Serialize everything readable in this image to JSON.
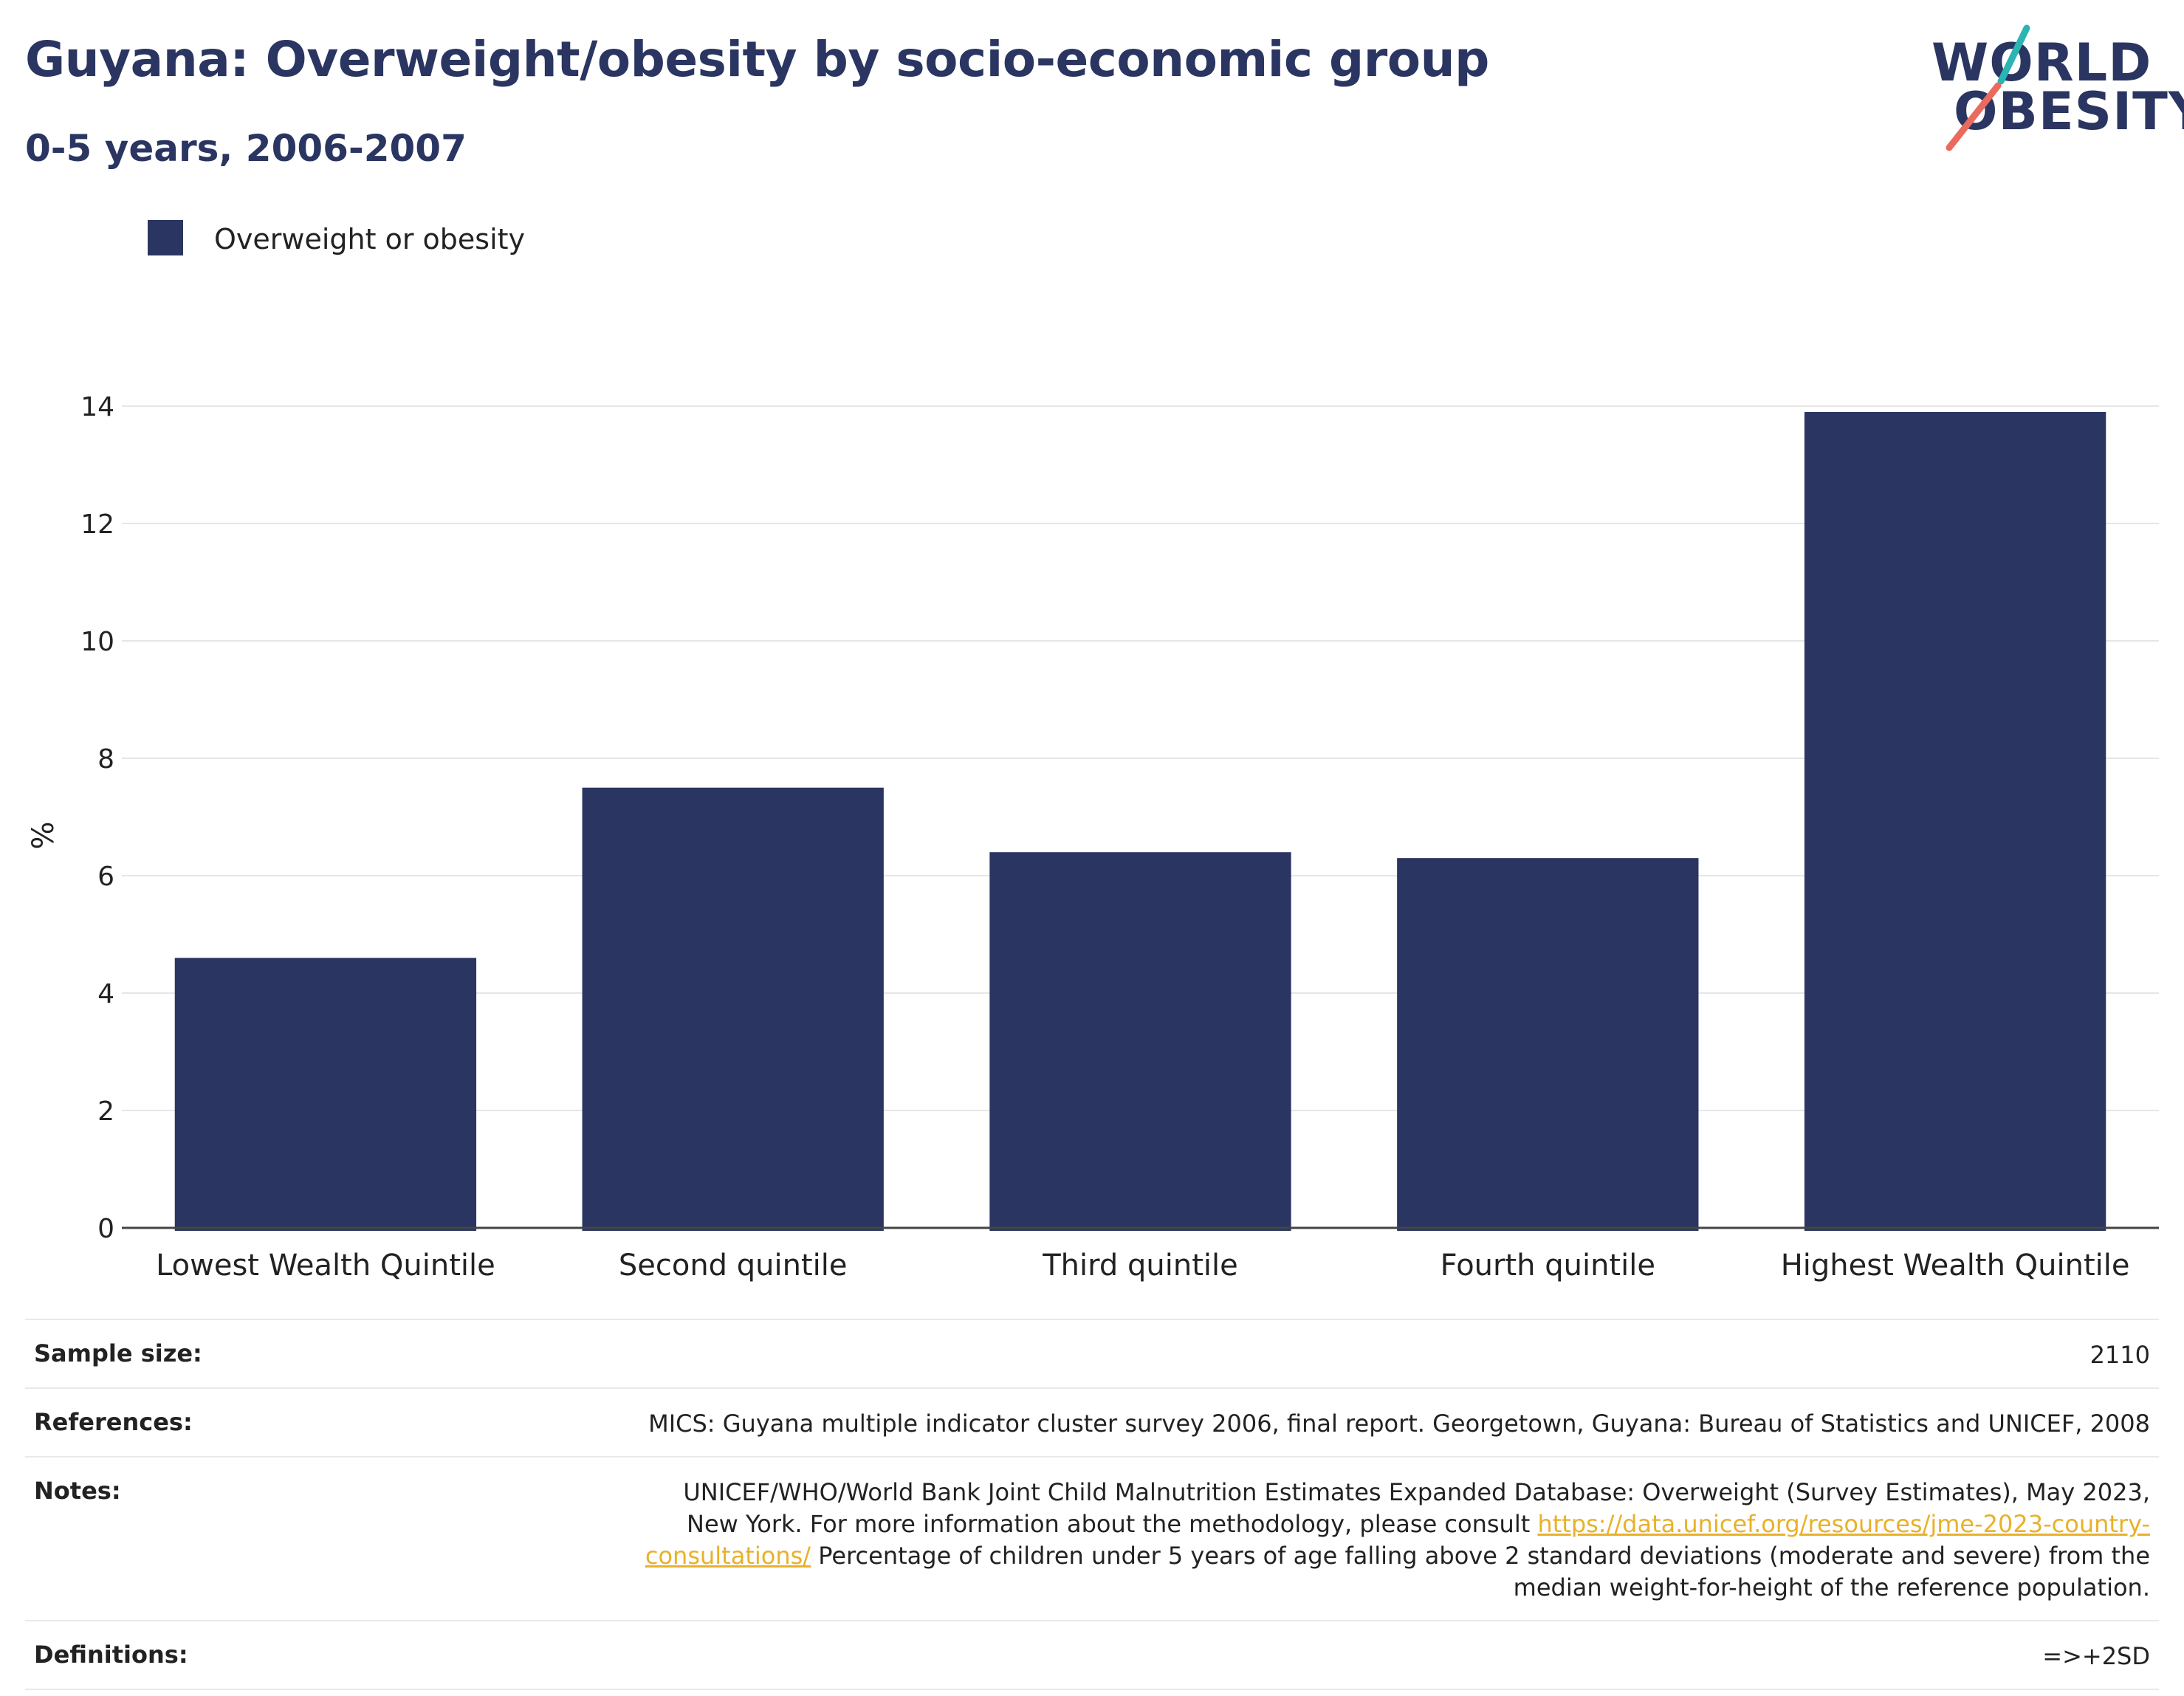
{
  "header": {
    "title": "Guyana: Overweight/obesity by socio-economic group",
    "subtitle": "0-5 years, 2006-2007"
  },
  "logo": {
    "line1": "WORLD",
    "line2": "OBESITY"
  },
  "legend": {
    "label": "Overweight or obesity"
  },
  "colors": {
    "bar": "#2a3561",
    "accent_teal": "#2bb5b2",
    "accent_coral": "#ea6a5d",
    "link": "#e9b12a"
  },
  "chart_data": {
    "type": "bar",
    "categories": [
      "Lowest Wealth Quintile",
      "Second quintile",
      "Third quintile",
      "Fourth quintile",
      "Highest Wealth Quintile"
    ],
    "series": [
      {
        "name": "Overweight or obesity",
        "values": [
          4.6,
          7.5,
          6.4,
          6.3,
          13.9
        ]
      }
    ],
    "xlabel": "",
    "ylabel": "%",
    "ylim": [
      0,
      14
    ],
    "yticks": [
      0,
      2,
      4,
      6,
      8,
      10,
      12,
      14
    ],
    "grid": true,
    "legend_position": "top-left"
  },
  "info": {
    "sample_size": {
      "label": "Sample size:",
      "value": "2110"
    },
    "references": {
      "label": "References:",
      "value": "MICS: Guyana multiple indicator cluster survey 2006, final report. Georgetown, Guyana: Bureau of Statistics and UNICEF, 2008"
    },
    "notes": {
      "label": "Notes:",
      "text_before": "UNICEF/WHO/World Bank Joint Child Malnutrition Estimates Expanded Database: Overweight (Survey Estimates), May 2023, New York. For more information about the methodology, please consult ",
      "link": "https://data.unicef.org/resources/jme-2023-country-consultations/",
      "text_after": " Percentage of children under 5 years of age falling above 2 standard deviations (moderate and severe) from the median weight-for-height of the reference population."
    },
    "definitions": {
      "label": "Definitions:",
      "value": "=>+2SD"
    }
  }
}
